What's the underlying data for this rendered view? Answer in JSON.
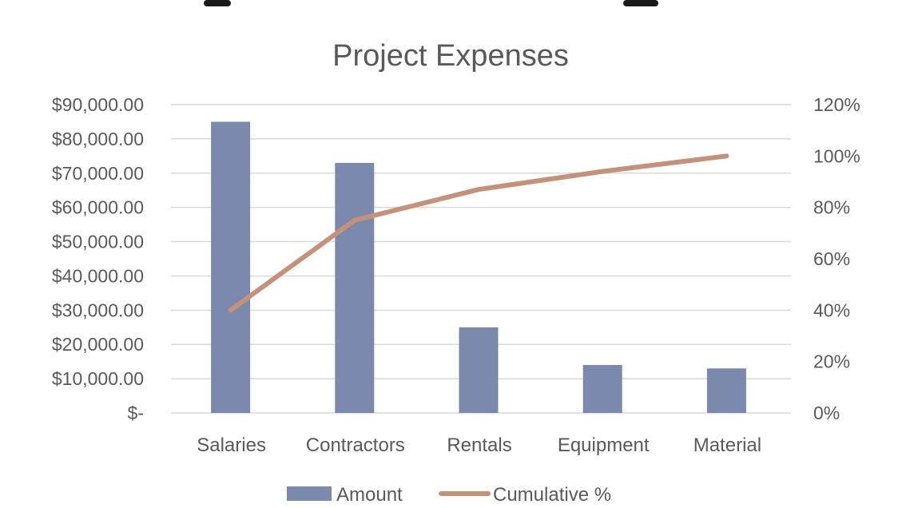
{
  "colors": {
    "bar": "#7b89ad",
    "line": "#c4917a",
    "grid": "#d9d9d9",
    "text": "#595959",
    "top_shape": "#1a1a1a"
  },
  "chart_data": {
    "type": "bar",
    "title": "Project Expenses",
    "xlabel": "",
    "ylabel": "",
    "categories": [
      "Salaries",
      "Contractors",
      "Rentals",
      "Equipment",
      "Material"
    ],
    "series": [
      {
        "name": "Amount",
        "type": "bar",
        "axis": "primary",
        "values": [
          85000,
          73000,
          25000,
          14000,
          13000
        ]
      },
      {
        "name": "Cumulative %",
        "type": "line",
        "axis": "secondary",
        "values": [
          40,
          75,
          87,
          94,
          100
        ]
      }
    ],
    "ylim": [
      0,
      90000
    ],
    "y_ticks": [
      0,
      10000,
      20000,
      30000,
      40000,
      50000,
      60000,
      70000,
      80000,
      90000
    ],
    "y_tick_labels": [
      "$-",
      "$10,000.00",
      "$20,000.00",
      "$30,000.00",
      "$40,000.00",
      "$50,000.00",
      "$60,000.00",
      "$70,000.00",
      "$80,000.00",
      "$90,000.00"
    ],
    "y2lim": [
      0,
      120
    ],
    "y2_ticks": [
      0,
      20,
      40,
      60,
      80,
      100,
      120
    ],
    "y2_tick_labels": [
      "0%",
      "20%",
      "40%",
      "60%",
      "80%",
      "100%",
      "120%"
    ],
    "grid": true,
    "legend_position": "bottom"
  }
}
